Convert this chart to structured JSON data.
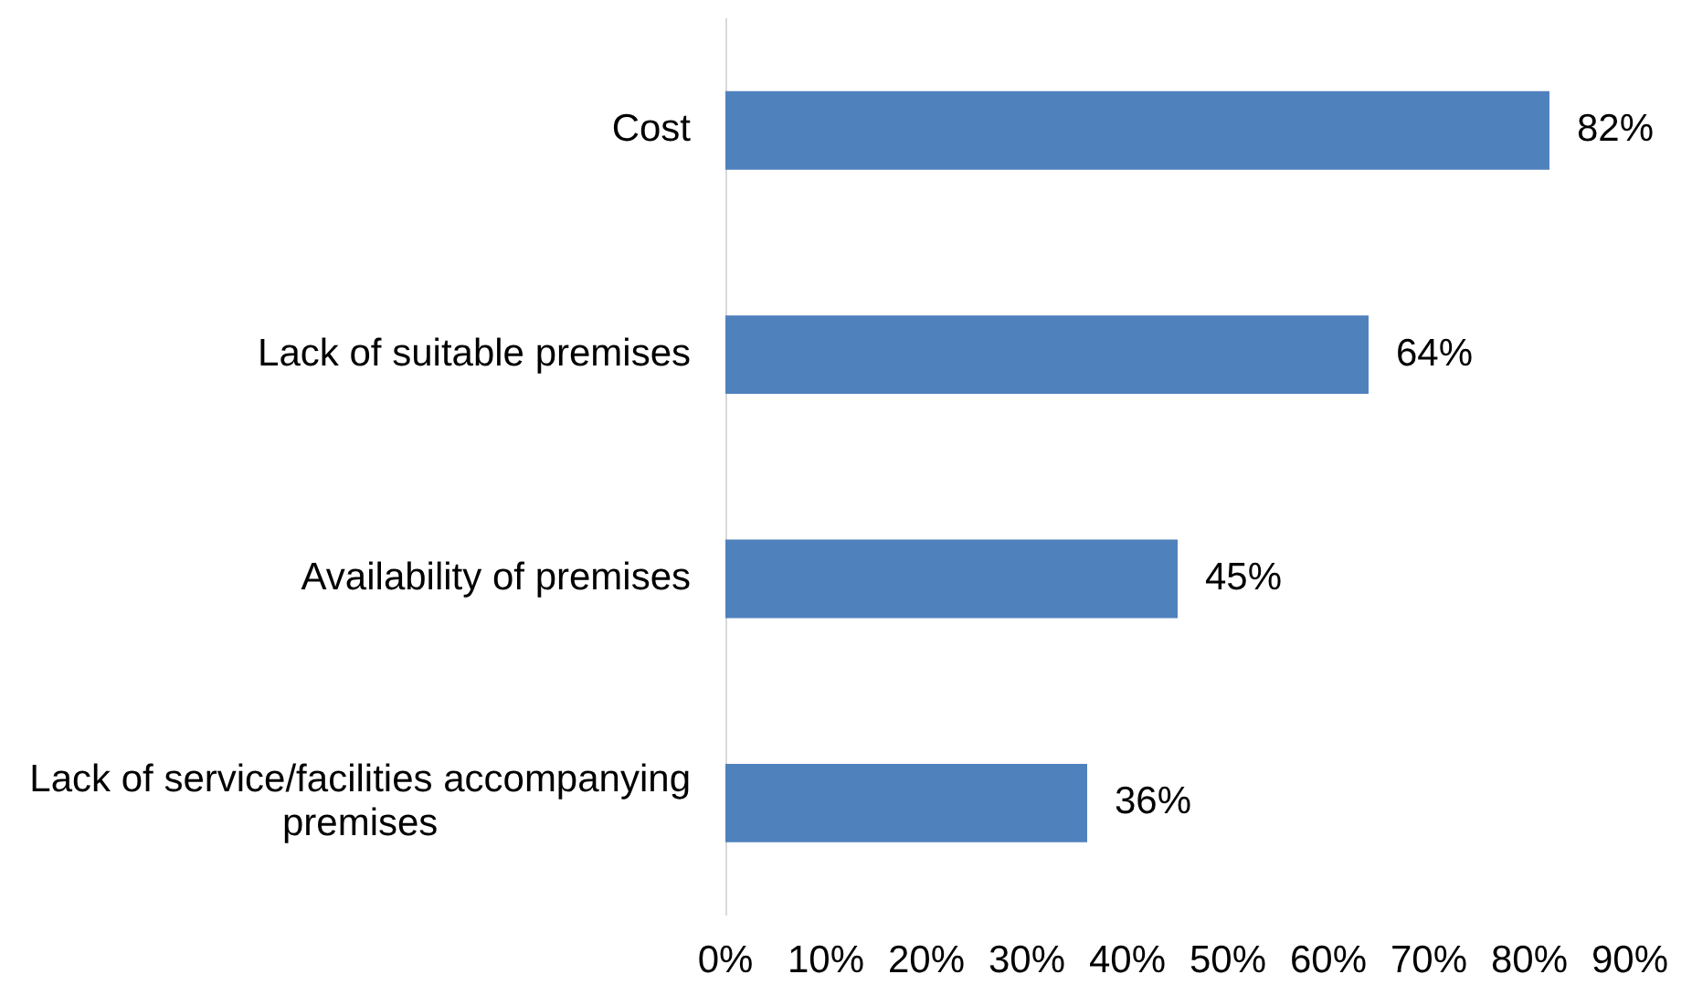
{
  "chart_data": {
    "type": "bar",
    "orientation": "horizontal",
    "categories": [
      "Cost",
      "Lack of suitable premises",
      "Availability of premises",
      "Lack of service/facilities accompanying premises"
    ],
    "values": [
      82,
      64,
      45,
      36
    ],
    "color": "#4f81bd",
    "value_labels": [
      "82%",
      "64%",
      "45%",
      "36%"
    ],
    "xlim": [
      0,
      90
    ],
    "xticks": [
      {
        "value": 0,
        "label": "0%"
      },
      {
        "value": 10,
        "label": "10%"
      },
      {
        "value": 20,
        "label": "20%"
      },
      {
        "value": 30,
        "label": "30%"
      },
      {
        "value": 40,
        "label": "40%"
      },
      {
        "value": 50,
        "label": "50%"
      },
      {
        "value": 60,
        "label": "60%"
      },
      {
        "value": 70,
        "label": "70%"
      },
      {
        "value": 80,
        "label": "80%"
      },
      {
        "value": 90,
        "label": "90%"
      }
    ],
    "grid": false
  }
}
